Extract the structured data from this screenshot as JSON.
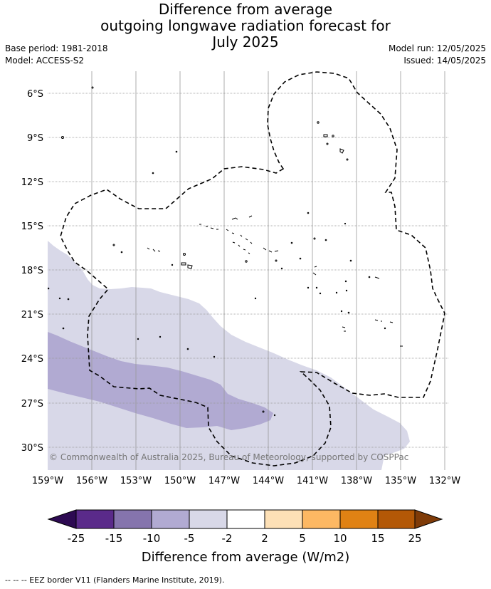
{
  "title": {
    "line1": "Difference from average",
    "line2": "outgoing longwave radiation forecast for",
    "line3": "July 2025"
  },
  "meta": {
    "base_period": "Base period: 1981-2018",
    "model": "Model: ACCESS-S2",
    "model_run": "Model run: 12/05/2025",
    "issued": "Issued: 14/05/2025"
  },
  "map": {
    "lat_labels": [
      "6°S",
      "9°S",
      "12°S",
      "15°S",
      "18°S",
      "21°S",
      "24°S",
      "27°S",
      "30°S"
    ],
    "lon_labels": [
      "159°W",
      "156°W",
      "153°W",
      "150°W",
      "147°W",
      "144°W",
      "141°W",
      "138°W",
      "135°W",
      "132°W"
    ],
    "copyright": "© Commonwealth of Australia 2025, Bureau of Meteorology, supported by COSPPac"
  },
  "colorbar": {
    "ticks": [
      "-25",
      "-15",
      "-10",
      "-5",
      "-2",
      "2",
      "5",
      "10",
      "15",
      "25"
    ],
    "colors": [
      "#2d0a52",
      "#5a2a8a",
      "#8574ad",
      "#b1aad2",
      "#d8d8e8",
      "#ffffff",
      "#fde0b6",
      "#fdb863",
      "#e08214",
      "#b35806",
      "#7f3b08"
    ],
    "label": "Difference from average (W/m2)"
  },
  "shading_colors": {
    "light": "#d8d8e8",
    "medium": "#b1aad2"
  },
  "footnote": "--  --  -- EEZ border V11 (Flanders Marine Institute, 2019)."
}
